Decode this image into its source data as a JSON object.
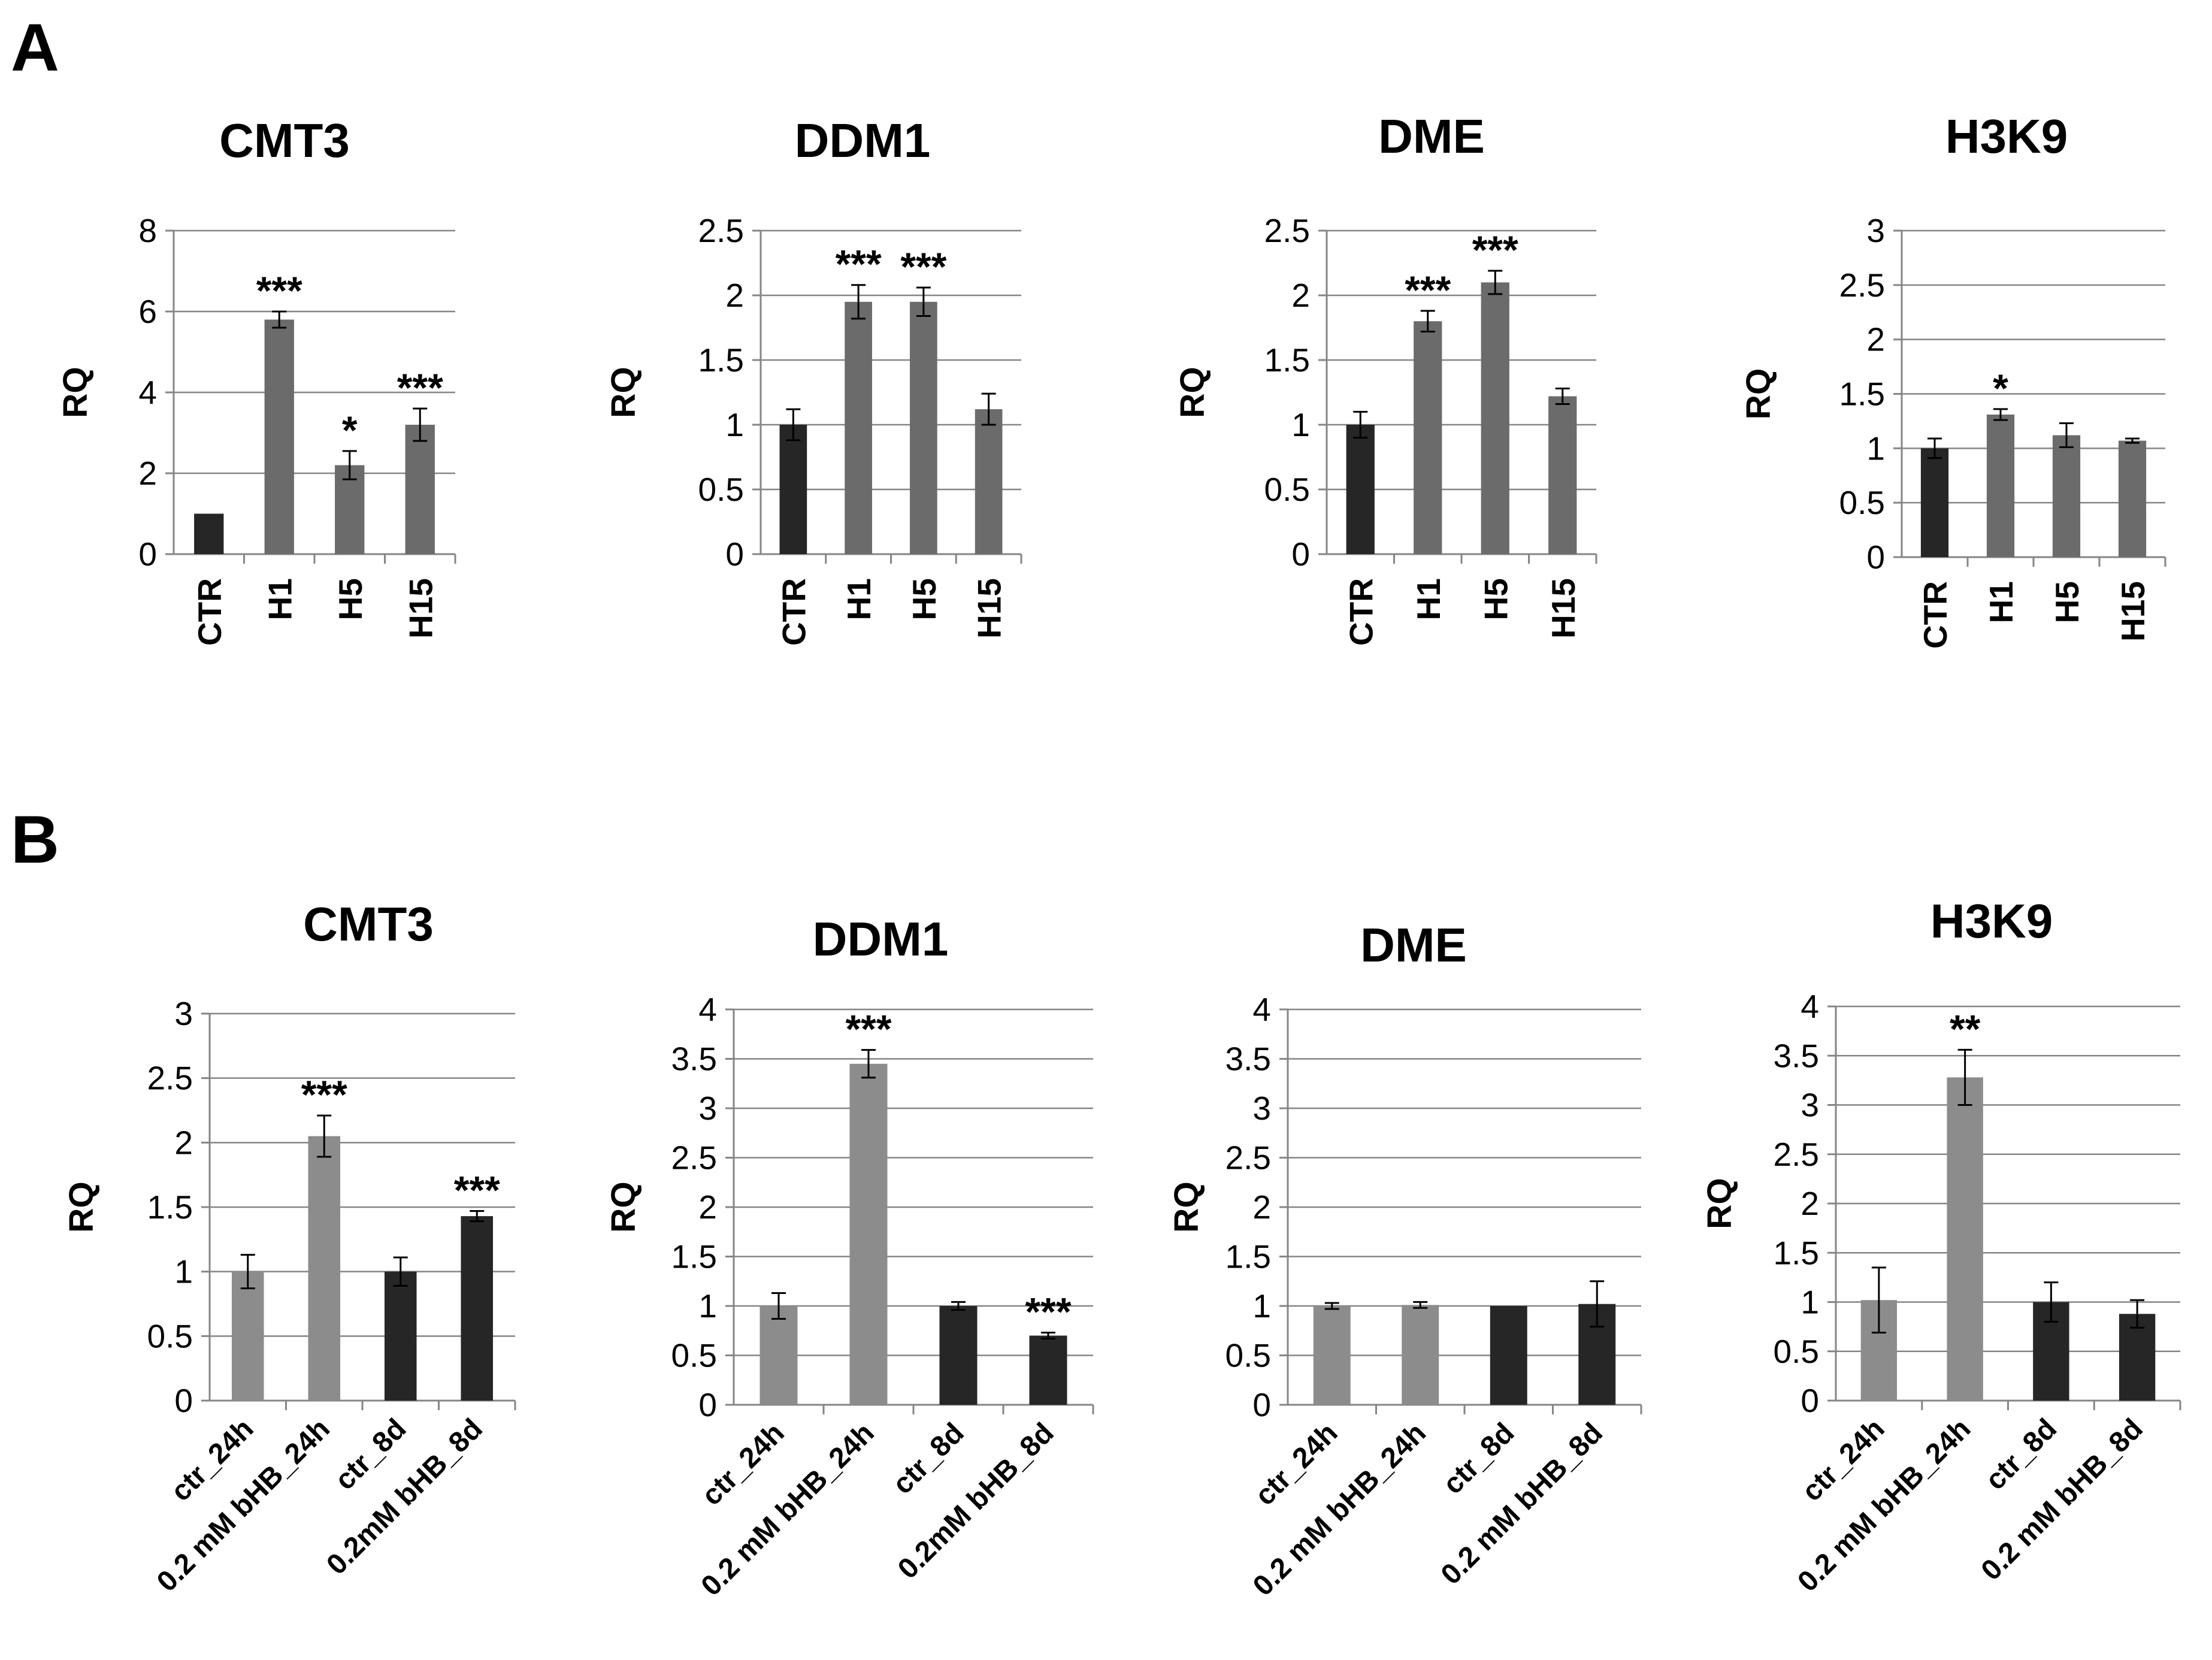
{
  "panel_labels": [
    "A",
    "B"
  ],
  "colors": {
    "ctr_dark": "#262626",
    "treat_gray_a": "#6b6b6b",
    "treat_gray_b": "#8c8c8c",
    "black_b": "#262626"
  },
  "chart_data": [
    {
      "type": "bar",
      "panel": "A",
      "title": "CMT3",
      "ylabel": "RQ",
      "categories": [
        "CTR",
        "H1",
        "H5",
        "H15"
      ],
      "values": [
        1.0,
        5.8,
        2.2,
        3.2
      ],
      "errors": [
        0.0,
        0.2,
        0.35,
        0.4
      ],
      "colors": [
        "dark",
        "gray",
        "gray",
        "gray"
      ],
      "significance": [
        "",
        "***",
        "*",
        "***"
      ],
      "ylim": [
        0,
        8
      ],
      "yticks": [
        "0",
        "2",
        "4",
        "6",
        "8"
      ],
      "ytick_values": [
        0,
        2,
        4,
        6,
        8
      ]
    },
    {
      "type": "bar",
      "panel": "A",
      "title": "DDM1",
      "ylabel": "RQ",
      "categories": [
        "CTR",
        "H1",
        "H5",
        "H15"
      ],
      "values": [
        1.0,
        1.95,
        1.95,
        1.12
      ],
      "errors": [
        0.12,
        0.13,
        0.11,
        0.12
      ],
      "colors": [
        "dark",
        "gray",
        "gray",
        "gray"
      ],
      "significance": [
        "",
        "***",
        "***",
        ""
      ],
      "ylim": [
        0,
        2.5
      ],
      "yticks": [
        "0",
        "0.5",
        "1",
        "1.5",
        "2",
        "2.5"
      ],
      "ytick_values": [
        0,
        0.5,
        1,
        1.5,
        2,
        2.5
      ]
    },
    {
      "type": "bar",
      "panel": "A",
      "title": "DME",
      "ylabel": "RQ",
      "categories": [
        "CTR",
        "H1",
        "H5",
        "H15"
      ],
      "values": [
        1.0,
        1.8,
        2.1,
        1.22
      ],
      "errors": [
        0.1,
        0.08,
        0.09,
        0.06
      ],
      "colors": [
        "dark",
        "gray",
        "gray",
        "gray"
      ],
      "significance": [
        "",
        "***",
        "***",
        ""
      ],
      "ylim": [
        0,
        2.5
      ],
      "yticks": [
        "0",
        "0.5",
        "1",
        "1.5",
        "2",
        "2.5"
      ],
      "ytick_values": [
        0,
        0.5,
        1,
        1.5,
        2,
        2.5
      ]
    },
    {
      "type": "bar",
      "panel": "A",
      "title": "H3K9",
      "ylabel": "RQ",
      "categories": [
        "CTR",
        "H1",
        "H5",
        "H15"
      ],
      "values": [
        1.0,
        1.31,
        1.12,
        1.07
      ],
      "errors": [
        0.09,
        0.05,
        0.11,
        0.02
      ],
      "colors": [
        "dark",
        "gray",
        "gray",
        "gray"
      ],
      "significance": [
        "",
        "*",
        "",
        ""
      ],
      "ylim": [
        0,
        3
      ],
      "yticks": [
        "0",
        "0.5",
        "1",
        "1.5",
        "2",
        "2.5",
        "3"
      ],
      "ytick_values": [
        0,
        0.5,
        1,
        1.5,
        2,
        2.5,
        3
      ]
    },
    {
      "type": "bar",
      "panel": "B",
      "title": "CMT3",
      "ylabel": "RQ",
      "categories": [
        "ctr_24h",
        "0.2 mM bHB_24h",
        "ctr_8d",
        "0.2mM bHB_8d"
      ],
      "values": [
        1.0,
        2.05,
        1.0,
        1.43
      ],
      "errors": [
        0.13,
        0.16,
        0.11,
        0.04
      ],
      "colors": [
        "lightgray",
        "lightgray",
        "black",
        "black"
      ],
      "significance": [
        "",
        "***",
        "",
        "***"
      ],
      "ylim": [
        0,
        3
      ],
      "yticks": [
        "0",
        "0.5",
        "1",
        "1.5",
        "2",
        "2.5",
        "3"
      ],
      "ytick_values": [
        0,
        0.5,
        1,
        1.5,
        2,
        2.5,
        3
      ]
    },
    {
      "type": "bar",
      "panel": "B",
      "title": "DDM1",
      "ylabel": "RQ",
      "categories": [
        "ctr_24h",
        "0.2 mM bHB_24h",
        "ctr_8d",
        "0.2mM bHB_8d"
      ],
      "values": [
        1.0,
        3.45,
        1.0,
        0.7
      ],
      "errors": [
        0.13,
        0.14,
        0.04,
        0.03
      ],
      "colors": [
        "lightgray",
        "lightgray",
        "black",
        "black"
      ],
      "significance": [
        "",
        "***",
        "",
        "***"
      ],
      "ylim": [
        0,
        4
      ],
      "yticks": [
        "0",
        "0.5",
        "1",
        "1.5",
        "2",
        "2.5",
        "3",
        "3.5",
        "4"
      ],
      "ytick_values": [
        0,
        0.5,
        1,
        1.5,
        2,
        2.5,
        3,
        3.5,
        4
      ]
    },
    {
      "type": "bar",
      "panel": "B",
      "title": "DME",
      "ylabel": "RQ",
      "categories": [
        "ctr_24h",
        "0.2 mM bHB_24h",
        "ctr_8d",
        "0.2 mM bHB_8d"
      ],
      "values": [
        1.0,
        1.01,
        1.0,
        1.02
      ],
      "errors": [
        0.03,
        0.03,
        0.0,
        0.23
      ],
      "colors": [
        "lightgray",
        "lightgray",
        "black",
        "black"
      ],
      "significance": [
        "",
        "",
        "",
        ""
      ],
      "ylim": [
        0,
        4
      ],
      "yticks": [
        "0",
        "0.5",
        "1",
        "1.5",
        "2",
        "2.5",
        "3",
        "3.5",
        "4"
      ],
      "ytick_values": [
        0,
        0.5,
        1,
        1.5,
        2,
        2.5,
        3,
        3.5,
        4
      ]
    },
    {
      "type": "bar",
      "panel": "B",
      "title": "H3K9",
      "ylabel": "RQ",
      "categories": [
        "ctr_24h",
        "0.2 mM bHB_24h",
        "ctr_8d",
        "0.2 mM bHB_8d"
      ],
      "values": [
        1.02,
        3.28,
        1.0,
        0.88
      ],
      "errors": [
        0.33,
        0.28,
        0.2,
        0.14
      ],
      "colors": [
        "lightgray",
        "lightgray",
        "black",
        "black"
      ],
      "significance": [
        "",
        "**",
        "",
        ""
      ],
      "ylim": [
        0,
        4
      ],
      "yticks": [
        "0",
        "0.5",
        "1",
        "1.5",
        "2",
        "2.5",
        "3",
        "3.5",
        "4"
      ],
      "ytick_values": [
        0,
        0.5,
        1,
        1.5,
        2,
        2.5,
        3,
        3.5,
        4
      ]
    }
  ]
}
